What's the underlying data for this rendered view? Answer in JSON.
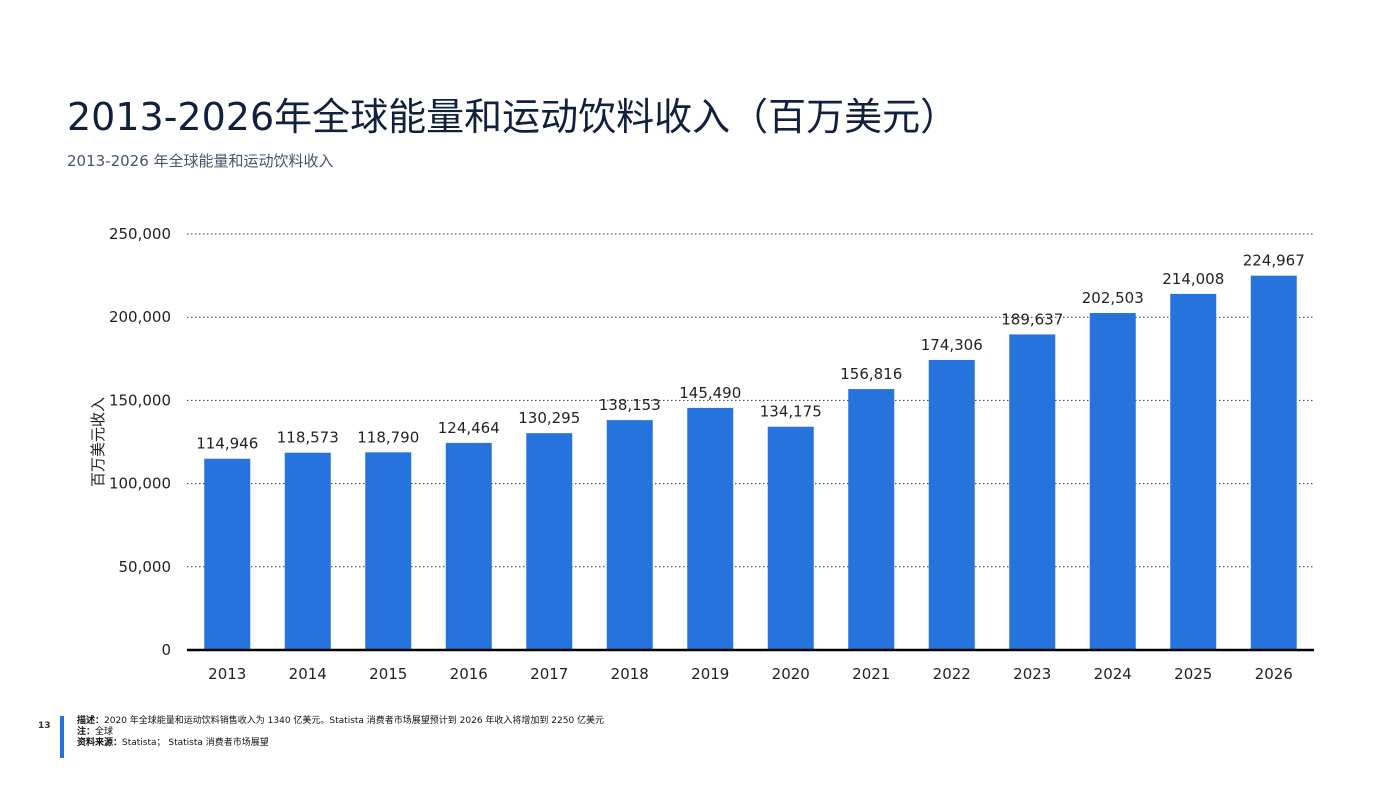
{
  "page": {
    "title": "2013-2026年全球能量和运动饮料收入（百万美元）",
    "subtitle": "2013-2026 年全球能量和运动饮料收入",
    "page_number": "13"
  },
  "footer": {
    "desc_label": "描述：",
    "desc_text": "2020 年全球能量和运动饮料销售收入为 1340 亿美元。Statista 消费者市场展望预计到 2026 年收入将增加到 2250 亿美元",
    "note_label": "注：",
    "note_text": "全球",
    "source_label": "资料来源：",
    "source_text": "Statista； Statista 消费者市场展望"
  },
  "chart_data": {
    "type": "bar",
    "title": "",
    "xlabel": "",
    "ylabel": "百万美元收入",
    "categories": [
      "2013",
      "2014",
      "2015",
      "2016",
      "2017",
      "2018",
      "2019",
      "2020",
      "2021",
      "2022",
      "2023",
      "2024",
      "2025",
      "2026"
    ],
    "values": [
      114946,
      118573,
      118790,
      124464,
      130295,
      138153,
      145490,
      134175,
      156816,
      174306,
      189637,
      202503,
      214008,
      224967
    ],
    "value_labels": [
      "114,946",
      "118,573",
      "118,790",
      "124,464",
      "130,295",
      "138,153",
      "145,490",
      "134,175",
      "156,816",
      "174,306",
      "189,637",
      "202,503",
      "214,008",
      "224,967"
    ],
    "yticks": [
      0,
      50000,
      100000,
      150000,
      200000,
      250000
    ],
    "ytick_labels": [
      "0",
      "50,000",
      "100,000",
      "150,000",
      "200,000",
      "250,000"
    ],
    "ylim": [
      0,
      250000
    ],
    "grid": true,
    "bar_color": "#2673dd"
  }
}
